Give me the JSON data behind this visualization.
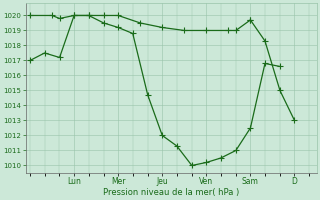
{
  "background_color": "#cce8d8",
  "plot_bg_color": "#cce8d8",
  "line_color": "#1a6b1a",
  "marker_color": "#1a6b1a",
  "grid_color": "#99c4aa",
  "tick_label_color": "#1a6b1a",
  "xlabel": "Pression niveau de la mer( hPa )",
  "xlabel_color": "#1a6b1a",
  "ylim": [
    1009.5,
    1020.8
  ],
  "yticks": [
    1010,
    1011,
    1012,
    1013,
    1014,
    1015,
    1016,
    1017,
    1018,
    1019,
    1020
  ],
  "day_labels": [
    "Lun",
    "Mer",
    "Jeu",
    "Ven",
    "Sam",
    "D"
  ],
  "day_positions": [
    1.0,
    2.0,
    3.0,
    4.0,
    5.0,
    6.0
  ],
  "series1_x": [
    0.0,
    0.33,
    0.67,
    1.0,
    1.33,
    1.67,
    2.0,
    2.33,
    2.67,
    3.0,
    3.33,
    3.67,
    4.0,
    4.33,
    4.67,
    5.0,
    5.33,
    5.67
  ],
  "series1_y": [
    1017.0,
    1017.5,
    1017.2,
    1020.0,
    1020.0,
    1019.5,
    1019.2,
    1018.8,
    1014.7,
    1012.0,
    1011.3,
    1010.0,
    1010.2,
    1010.5,
    1011.0,
    1012.5,
    1016.8,
    1016.6
  ],
  "series2_x": [
    0.0,
    0.5,
    0.67,
    1.0,
    1.33,
    1.67,
    2.0,
    2.5,
    3.0,
    3.5,
    4.0,
    4.5,
    4.67,
    5.0
  ],
  "series2_y": [
    1020.0,
    1020.0,
    1019.8,
    1020.0,
    1020.0,
    1020.0,
    1020.0,
    1019.5,
    1019.2,
    1019.0,
    1019.0,
    1019.0,
    1019.0,
    1019.7
  ],
  "series3_x": [
    5.0,
    5.33,
    5.67,
    6.0
  ],
  "series3_y": [
    1019.7,
    1018.3,
    1015.0,
    1013.0
  ],
  "figsize": [
    3.2,
    2.0
  ],
  "dpi": 100
}
